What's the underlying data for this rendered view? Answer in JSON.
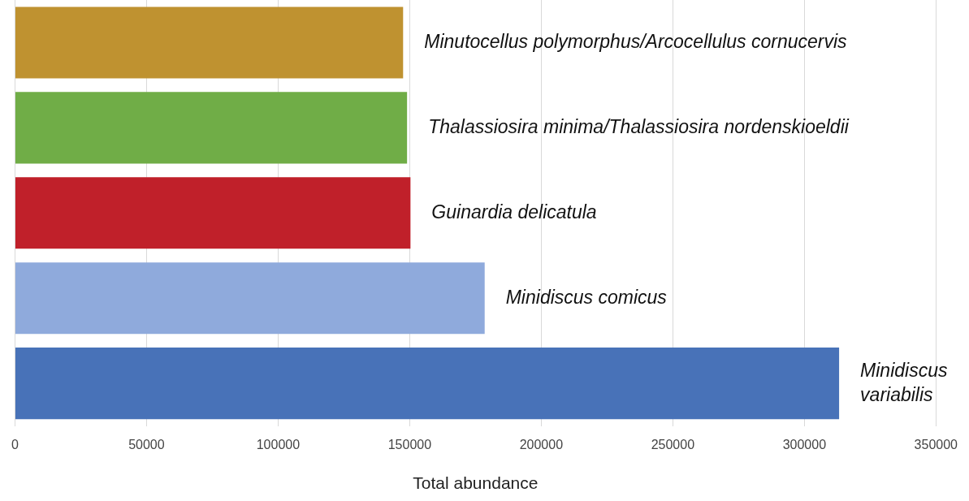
{
  "chart_data": {
    "type": "bar",
    "orientation": "horizontal",
    "xlabel": "Total abundance",
    "categories": [
      "Minutocellus polymorphus/Arcocellulus cornucervis",
      "Thalassiosira minima/Thalassiosira nordenskioeldii",
      "Guinardia delicatula",
      "Minidiscus comicus",
      "Minidiscus variabilis"
    ],
    "values": [
      147500,
      149000,
      150300,
      178500,
      313200
    ],
    "colors": [
      "#bf9230",
      "#70ad47",
      "#c0202a",
      "#8faadc",
      "#4872b8"
    ],
    "xlim": [
      0,
      350000
    ],
    "xticks": [
      0,
      50000,
      100000,
      150000,
      200000,
      250000,
      300000,
      350000
    ],
    "grid": "x"
  }
}
